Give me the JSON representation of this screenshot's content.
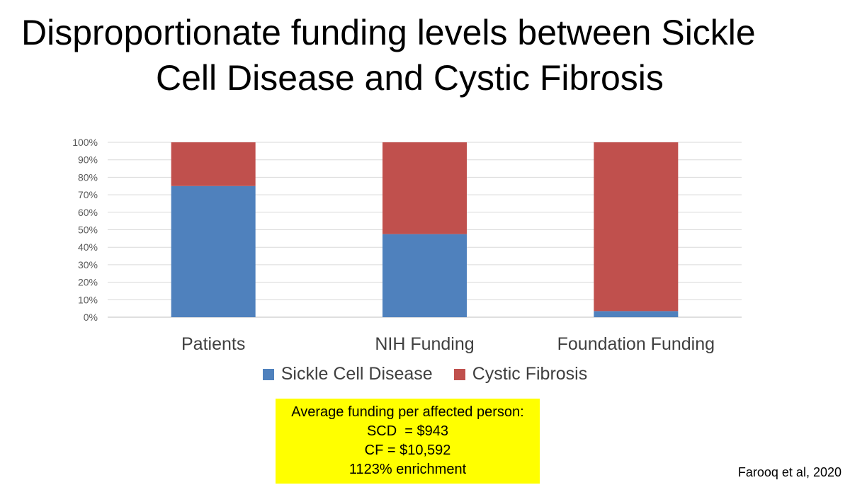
{
  "title_lines": [
    "Disproportionate funding levels between Sickle",
    "Cell Disease and Cystic Fibrosis"
  ],
  "note": {
    "lines": [
      "Average funding per affected person:",
      "SCD  = $943",
      "CF = $10,592",
      "1123% enrichment"
    ],
    "background": "#ffff00"
  },
  "citation": "Farooq et al, 2020",
  "chart_data": {
    "type": "bar",
    "stacked": true,
    "categories": [
      "Patients",
      "NIH Funding",
      "Foundation Funding"
    ],
    "series": [
      {
        "name": "Sickle Cell Disease",
        "values": [
          75,
          47.5,
          3.5
        ],
        "color": "#4f81bd"
      },
      {
        "name": "Cystic Fibrosis",
        "values": [
          25,
          52.5,
          96.5
        ],
        "color": "#c0504d"
      }
    ],
    "ylim": [
      0,
      100
    ],
    "yticks": [
      "0%",
      "10%",
      "20%",
      "30%",
      "40%",
      "50%",
      "60%",
      "70%",
      "80%",
      "90%",
      "100%"
    ],
    "grid": true,
    "legend_position": "bottom"
  }
}
